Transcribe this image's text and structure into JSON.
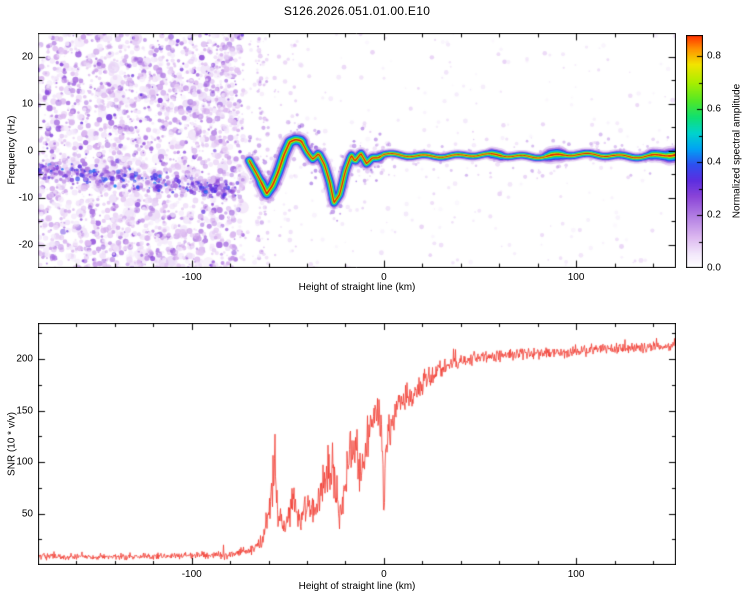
{
  "title": "S126.2026.051.01.00.E10",
  "colors": {
    "background": "#ffffff",
    "frame": "#000000",
    "snr_line": "#f13a30"
  },
  "chart_data": [
    {
      "type": "heatmap",
      "xlabel": "Height of straight line (km)",
      "ylabel": "Frequency (Hz)",
      "xlim": [
        -180,
        152
      ],
      "ylim": [
        -25,
        25
      ],
      "xticks": [
        -100,
        0,
        100
      ],
      "xtick_labels": [
        "-100",
        "0",
        "100"
      ],
      "yticks": [
        -20,
        -10,
        0,
        10,
        20
      ],
      "ytick_labels": [
        "-20",
        "-10",
        "0",
        "10",
        "20"
      ],
      "x_minor_step": 20,
      "y_minor_step": 5,
      "colorbar": {
        "label": "Normalized spectral amplitude",
        "range": [
          0,
          0.88
        ],
        "ticks": [
          0,
          0.2,
          0.4,
          0.6,
          0.8
        ],
        "tick_labels": [
          "0.0",
          "0.2",
          "0.4",
          "0.6",
          "0.8"
        ],
        "minor_step": 0.1,
        "colormap": [
          [
            0.0,
            "#ffffff"
          ],
          [
            0.05,
            "#f3e8fb"
          ],
          [
            0.12,
            "#dab4ef"
          ],
          [
            0.2,
            "#b07ae2"
          ],
          [
            0.27,
            "#8a44d8"
          ],
          [
            0.33,
            "#5c2ee0"
          ],
          [
            0.39,
            "#2e50f0"
          ],
          [
            0.45,
            "#00a4f4"
          ],
          [
            0.51,
            "#00d4cc"
          ],
          [
            0.57,
            "#10e070"
          ],
          [
            0.63,
            "#50e828"
          ],
          [
            0.7,
            "#a8ee00"
          ],
          [
            0.77,
            "#f2e400"
          ],
          [
            0.83,
            "#ff9000"
          ],
          [
            0.88,
            "#ff3000"
          ],
          [
            1.0,
            "#c80000"
          ]
        ]
      },
      "noise": {
        "description": "dense low-amplitude purple speckle noise left of -73 km, sparse elsewhere",
        "dense_region": {
          "x": [
            -180,
            -73
          ],
          "count": 2600,
          "amp": [
            0.04,
            0.34
          ]
        },
        "ridge": {
          "x": [
            -180,
            -74
          ],
          "y_start": -4,
          "slope": -0.045,
          "spread": 2.5,
          "count": 360,
          "amp": [
            0.1,
            0.42
          ]
        },
        "column": {
          "x": [
            -66,
            -60
          ],
          "count": 90,
          "amp": [
            0.05,
            0.2
          ]
        },
        "gap_region": {
          "x": [
            -74,
            -45
          ],
          "count": 80,
          "amp": [
            0.04,
            0.12
          ]
        },
        "sparse_region": {
          "x": [
            -50,
            152
          ],
          "count": 260,
          "amp": [
            0.03,
            0.1
          ]
        }
      },
      "signal_trace": {
        "description": "coherent signal ridge near 0 Hz, wiggling between -70 and 0 km then flat to 152 km",
        "points_x": [
          -70,
          -67,
          -64,
          -61,
          -58,
          -55,
          -52,
          -49,
          -46,
          -43,
          -40,
          -37,
          -34,
          -31,
          -28,
          -26,
          -23,
          -20,
          -17,
          -15,
          -12,
          -9,
          -6,
          -3,
          0,
          20,
          40,
          60,
          80,
          100,
          120,
          135,
          152
        ],
        "points_y": [
          -2,
          -4.5,
          -7,
          -9.5,
          -7.5,
          -4.5,
          -1,
          1.5,
          2,
          2,
          0,
          -1.5,
          -0.5,
          -3,
          -7,
          -11,
          -9,
          -4,
          -1,
          -2.5,
          -1,
          -3,
          -1.5,
          -1.5,
          -1,
          -1,
          -1.2,
          -1,
          -1.2,
          -1,
          -1,
          -1.2,
          -1
        ],
        "width_scale": [
          1.4,
          1.6,
          1.7,
          1.7,
          1.6,
          1.5,
          1.5,
          1.6,
          1.5,
          1.4,
          1.3,
          1.3,
          1.3,
          1.4,
          1.5,
          1.6,
          1.5,
          1.4,
          1.3,
          1.2,
          1.2,
          1.2,
          1.1,
          1.1,
          1.0,
          1.0,
          1.0,
          1.0,
          1.0,
          1.0,
          1.0,
          1.0,
          1.0
        ],
        "hot_spots": [
          {
            "x": 57,
            "hw": 3,
            "s": 1.5
          },
          {
            "x": 88,
            "hw": 4,
            "s": 1.9
          },
          {
            "x": 120,
            "hw": 3,
            "s": 1.35
          },
          {
            "x": 141,
            "hw": 3,
            "s": 1.8
          },
          {
            "x": 149,
            "hw": 3,
            "s": 2.0
          }
        ],
        "fuzz": {
          "count_left": 220,
          "count_right": 130,
          "spread": 7,
          "amp": [
            0.08,
            0.3
          ]
        },
        "layers": [
          {
            "color": "#c8a0e6",
            "width": 10,
            "alpha": 0.45
          },
          {
            "color": "#9850d8",
            "width": 7.5,
            "alpha": 0.6
          },
          {
            "color": "#3344e8",
            "width": 5.8,
            "alpha": 1
          },
          {
            "color": "#00b8f0",
            "width": 4.4,
            "alpha": 1
          },
          {
            "color": "#2ae03c",
            "width": 3.0,
            "alpha": 1
          },
          {
            "color": "#f0e600",
            "width": 1.8,
            "alpha": 1
          },
          {
            "color": "#e02000",
            "width": 0.9,
            "alpha": 1
          }
        ]
      }
    },
    {
      "type": "line",
      "xlabel": "Height of straight line (km)",
      "ylabel": "SNR (10 * v/v)",
      "xlim": [
        -180,
        152
      ],
      "ylim": [
        0,
        235
      ],
      "xticks": [
        -100,
        0,
        100
      ],
      "xtick_labels": [
        "-100",
        "0",
        "100"
      ],
      "yticks": [
        50,
        100,
        150,
        200
      ],
      "ytick_labels": [
        "50",
        "100",
        "150",
        "200"
      ],
      "x_minor_step": 20,
      "y_minor_step": 25,
      "series": [
        {
          "name": "SNR",
          "color": "#f13a30",
          "x": [
            -180,
            -130,
            -95,
            -80,
            -73,
            -68,
            -63,
            -60,
            -57,
            -55,
            -52,
            -49,
            -47,
            -45,
            -43,
            -41,
            -38,
            -35,
            -32,
            -29,
            -26,
            -23,
            -21,
            -19,
            -16,
            -13,
            -11,
            -9,
            -7,
            -5,
            -3,
            -1,
            0,
            1,
            3,
            6,
            10,
            14,
            18,
            22,
            27,
            32,
            38,
            45,
            55,
            65,
            80,
            100,
            120,
            140,
            152
          ],
          "base": [
            8,
            8,
            9,
            10,
            13,
            16,
            24,
            50,
            88,
            48,
            36,
            55,
            72,
            50,
            45,
            55,
            52,
            62,
            78,
            92,
            86,
            48,
            72,
            95,
            112,
            104,
            82,
            116,
            132,
            146,
            152,
            122,
            62,
            112,
            136,
            148,
            158,
            166,
            173,
            180,
            188,
            193,
            197,
            200,
            202,
            204,
            206,
            208,
            210,
            212,
            213
          ],
          "jitter": [
            5,
            5,
            6,
            7,
            8,
            10,
            14,
            30,
            42,
            22,
            12,
            30,
            35,
            22,
            18,
            26,
            24,
            30,
            34,
            36,
            40,
            32,
            40,
            44,
            42,
            44,
            40,
            40,
            38,
            28,
            30,
            44,
            45,
            40,
            35,
            30,
            26,
            24,
            21,
            18,
            15,
            13,
            12,
            11,
            10,
            10,
            10,
            10,
            10,
            10,
            10
          ]
        }
      ]
    }
  ]
}
